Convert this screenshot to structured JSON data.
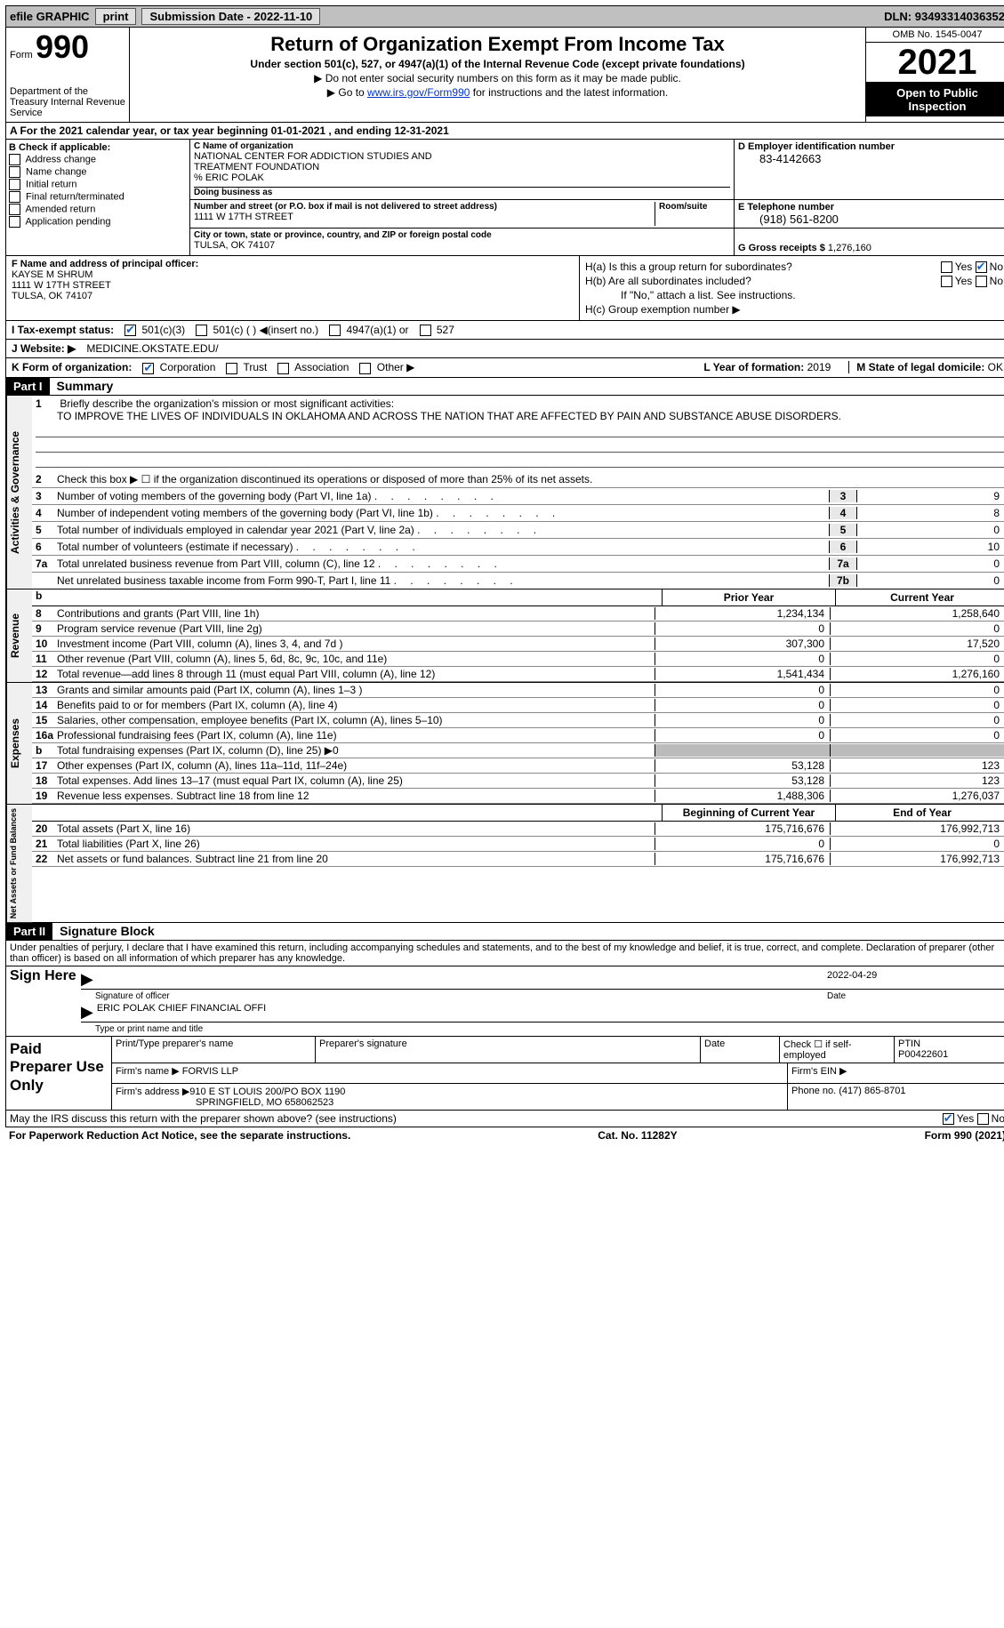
{
  "topbar": {
    "efile": "efile GRAPHIC",
    "print": "print",
    "subdate_label": "Submission Date - ",
    "subdate": "2022-11-10",
    "dln_label": "DLN: ",
    "dln": "93493314036352"
  },
  "header": {
    "form_word": "Form",
    "form_num": "990",
    "dept": "Department of the Treasury\nInternal Revenue Service",
    "title": "Return of Organization Exempt From Income Tax",
    "sub1": "Under section 501(c), 527, or 4947(a)(1) of the Internal Revenue Code (except private foundations)",
    "sub2": "▶ Do not enter social security numbers on this form as it may be made public.",
    "sub3_a": "▶ Go to ",
    "sub3_link": "www.irs.gov/Form990",
    "sub3_b": " for instructions and the latest information.",
    "omb": "OMB No. 1545-0047",
    "year": "2021",
    "open": "Open to Public Inspection"
  },
  "row_a": "A  For the 2021 calendar year, or tax year beginning 01-01-2021    , and ending 12-31-2021",
  "col_b": {
    "label": "B Check if applicable:",
    "items": [
      "Address change",
      "Name change",
      "Initial return",
      "Final return/terminated",
      "Amended return",
      "Application pending"
    ]
  },
  "col_c": {
    "name_label": "C Name of organization",
    "name1": "NATIONAL CENTER FOR ADDICTION STUDIES AND",
    "name2": "TREATMENT FOUNDATION",
    "care": "% ERIC POLAK",
    "dba_label": "Doing business as",
    "street_label": "Number and street (or P.O. box if mail is not delivered to street address)",
    "street": "1111 W 17TH STREET",
    "room_label": "Room/suite",
    "city_label": "City or town, state or province, country, and ZIP or foreign postal code",
    "city": "TULSA, OK   74107"
  },
  "col_d": {
    "ein_label": "D Employer identification number",
    "ein": "83-4142663",
    "phone_label": "E Telephone number",
    "phone": "(918) 561-8200",
    "gross_label": "G Gross receipts $ ",
    "gross": "1,276,160"
  },
  "row_f": {
    "label": "F Name and address of principal officer:",
    "name": "KAYSE M SHRUM",
    "street": "1111 W 17TH STREET",
    "city": "TULSA, OK   74107"
  },
  "row_h": {
    "ha": "H(a)  Is this a group return for subordinates?",
    "hb": "H(b)  Are all subordinates included?",
    "hb_note": "If \"No,\" attach a list. See instructions.",
    "hc": "H(c)  Group exemption number ▶",
    "yes": "Yes",
    "no": "No"
  },
  "row_i": {
    "label": "I   Tax-exempt status:",
    "o1": "501(c)(3)",
    "o2": "501(c) (   ) ◀(insert no.)",
    "o3": "4947(a)(1) or",
    "o4": "527"
  },
  "row_j": {
    "label": "J   Website: ▶",
    "value": "MEDICINE.OKSTATE.EDU/"
  },
  "row_k": {
    "label": "K Form of organization:",
    "corp": "Corporation",
    "trust": "Trust",
    "assoc": "Association",
    "other": "Other ▶",
    "l_label": "L Year of formation: ",
    "l_val": "2019",
    "m_label": "M State of legal domicile: ",
    "m_val": "OK"
  },
  "part1": {
    "label": "Part I",
    "title": "Summary"
  },
  "summary": {
    "l1_label": "Briefly describe the organization's mission or most significant activities:",
    "l1_text": "TO IMPROVE THE LIVES OF INDIVIDUALS IN OKLAHOMA AND ACROSS THE NATION THAT ARE AFFECTED BY PAIN AND SUBSTANCE ABUSE DISORDERS.",
    "l2": "Check this box ▶ ☐  if the organization discontinued its operations or disposed of more than 25% of its net assets.",
    "lines_ag": [
      {
        "n": "3",
        "t": "Number of voting members of the governing body (Part VI, line 1a)",
        "box": "3",
        "v": "9"
      },
      {
        "n": "4",
        "t": "Number of independent voting members of the governing body (Part VI, line 1b)",
        "box": "4",
        "v": "8"
      },
      {
        "n": "5",
        "t": "Total number of individuals employed in calendar year 2021 (Part V, line 2a)",
        "box": "5",
        "v": "0"
      },
      {
        "n": "6",
        "t": "Total number of volunteers (estimate if necessary)",
        "box": "6",
        "v": "10"
      },
      {
        "n": "7a",
        "t": "Total unrelated business revenue from Part VIII, column (C), line 12",
        "box": "7a",
        "v": "0"
      },
      {
        "n": "",
        "t": "Net unrelated business taxable income from Form 990-T, Part I, line 11",
        "box": "7b",
        "v": "0"
      }
    ],
    "col_prior": "Prior Year",
    "col_current": "Current Year",
    "revenue": [
      {
        "n": "8",
        "t": "Contributions and grants (Part VIII, line 1h)",
        "p": "1,234,134",
        "c": "1,258,640"
      },
      {
        "n": "9",
        "t": "Program service revenue (Part VIII, line 2g)",
        "p": "0",
        "c": "0"
      },
      {
        "n": "10",
        "t": "Investment income (Part VIII, column (A), lines 3, 4, and 7d )",
        "p": "307,300",
        "c": "17,520"
      },
      {
        "n": "11",
        "t": "Other revenue (Part VIII, column (A), lines 5, 6d, 8c, 9c, 10c, and 11e)",
        "p": "0",
        "c": "0"
      },
      {
        "n": "12",
        "t": "Total revenue—add lines 8 through 11 (must equal Part VIII, column (A), line 12)",
        "p": "1,541,434",
        "c": "1,276,160"
      }
    ],
    "expenses": [
      {
        "n": "13",
        "t": "Grants and similar amounts paid (Part IX, column (A), lines 1–3 )",
        "p": "0",
        "c": "0"
      },
      {
        "n": "14",
        "t": "Benefits paid to or for members (Part IX, column (A), line 4)",
        "p": "0",
        "c": "0"
      },
      {
        "n": "15",
        "t": "Salaries, other compensation, employee benefits (Part IX, column (A), lines 5–10)",
        "p": "0",
        "c": "0"
      },
      {
        "n": "16a",
        "t": "Professional fundraising fees (Part IX, column (A), line 11e)",
        "p": "0",
        "c": "0"
      },
      {
        "n": "b",
        "t": "Total fundraising expenses (Part IX, column (D), line 25) ▶0",
        "p": "",
        "c": "",
        "shaded": true
      },
      {
        "n": "17",
        "t": "Other expenses (Part IX, column (A), lines 11a–11d, 11f–24e)",
        "p": "53,128",
        "c": "123"
      },
      {
        "n": "18",
        "t": "Total expenses. Add lines 13–17 (must equal Part IX, column (A), line 25)",
        "p": "53,128",
        "c": "123"
      },
      {
        "n": "19",
        "t": "Revenue less expenses. Subtract line 18 from line 12",
        "p": "1,488,306",
        "c": "1,276,037"
      }
    ],
    "col_begin": "Beginning of Current Year",
    "col_end": "End of Year",
    "netassets": [
      {
        "n": "20",
        "t": "Total assets (Part X, line 16)",
        "p": "175,716,676",
        "c": "176,992,713"
      },
      {
        "n": "21",
        "t": "Total liabilities (Part X, line 26)",
        "p": "0",
        "c": "0"
      },
      {
        "n": "22",
        "t": "Net assets or fund balances. Subtract line 21 from line 20",
        "p": "175,716,676",
        "c": "176,992,713"
      }
    ],
    "tabs": {
      "ag": "Activities & Governance",
      "rev": "Revenue",
      "exp": "Expenses",
      "na": "Net Assets or Fund Balances"
    }
  },
  "part2": {
    "label": "Part II",
    "title": "Signature Block"
  },
  "penalties": "Under penalties of perjury, I declare that I have examined this return, including accompanying schedules and statements, and to the best of my knowledge and belief, it is true, correct, and complete. Declaration of preparer (other than officer) is based on all information of which preparer has any knowledge.",
  "sign": {
    "label": "Sign Here",
    "date": "2022-04-29",
    "sig_label": "Signature of officer",
    "date_label": "Date",
    "name": "ERIC POLAK  CHIEF FINANCIAL OFFI",
    "name_label": "Type or print name and title"
  },
  "paid": {
    "label": "Paid Preparer Use Only",
    "h1": "Print/Type preparer's name",
    "h2": "Preparer's signature",
    "h3": "Date",
    "h4": "Check ☐ if self-employed",
    "h5_label": "PTIN",
    "h5": "P00422601",
    "firm_label": "Firm's name    ▶ ",
    "firm": "FORVIS LLP",
    "ein_label": "Firm's EIN ▶",
    "addr_label": "Firm's address ▶",
    "addr1": "910 E ST LOUIS 200/PO BOX 1190",
    "addr2": "SPRINGFIELD, MO   658062523",
    "phone_label": "Phone no. ",
    "phone": "(417) 865-8701"
  },
  "discuss": {
    "text": "May the IRS discuss this return with the preparer shown above? (see instructions)",
    "yes": "Yes",
    "no": "No"
  },
  "footer": {
    "left": "For Paperwork Reduction Act Notice, see the separate instructions.",
    "mid": "Cat. No. 11282Y",
    "right": "Form 990 (2021)"
  }
}
